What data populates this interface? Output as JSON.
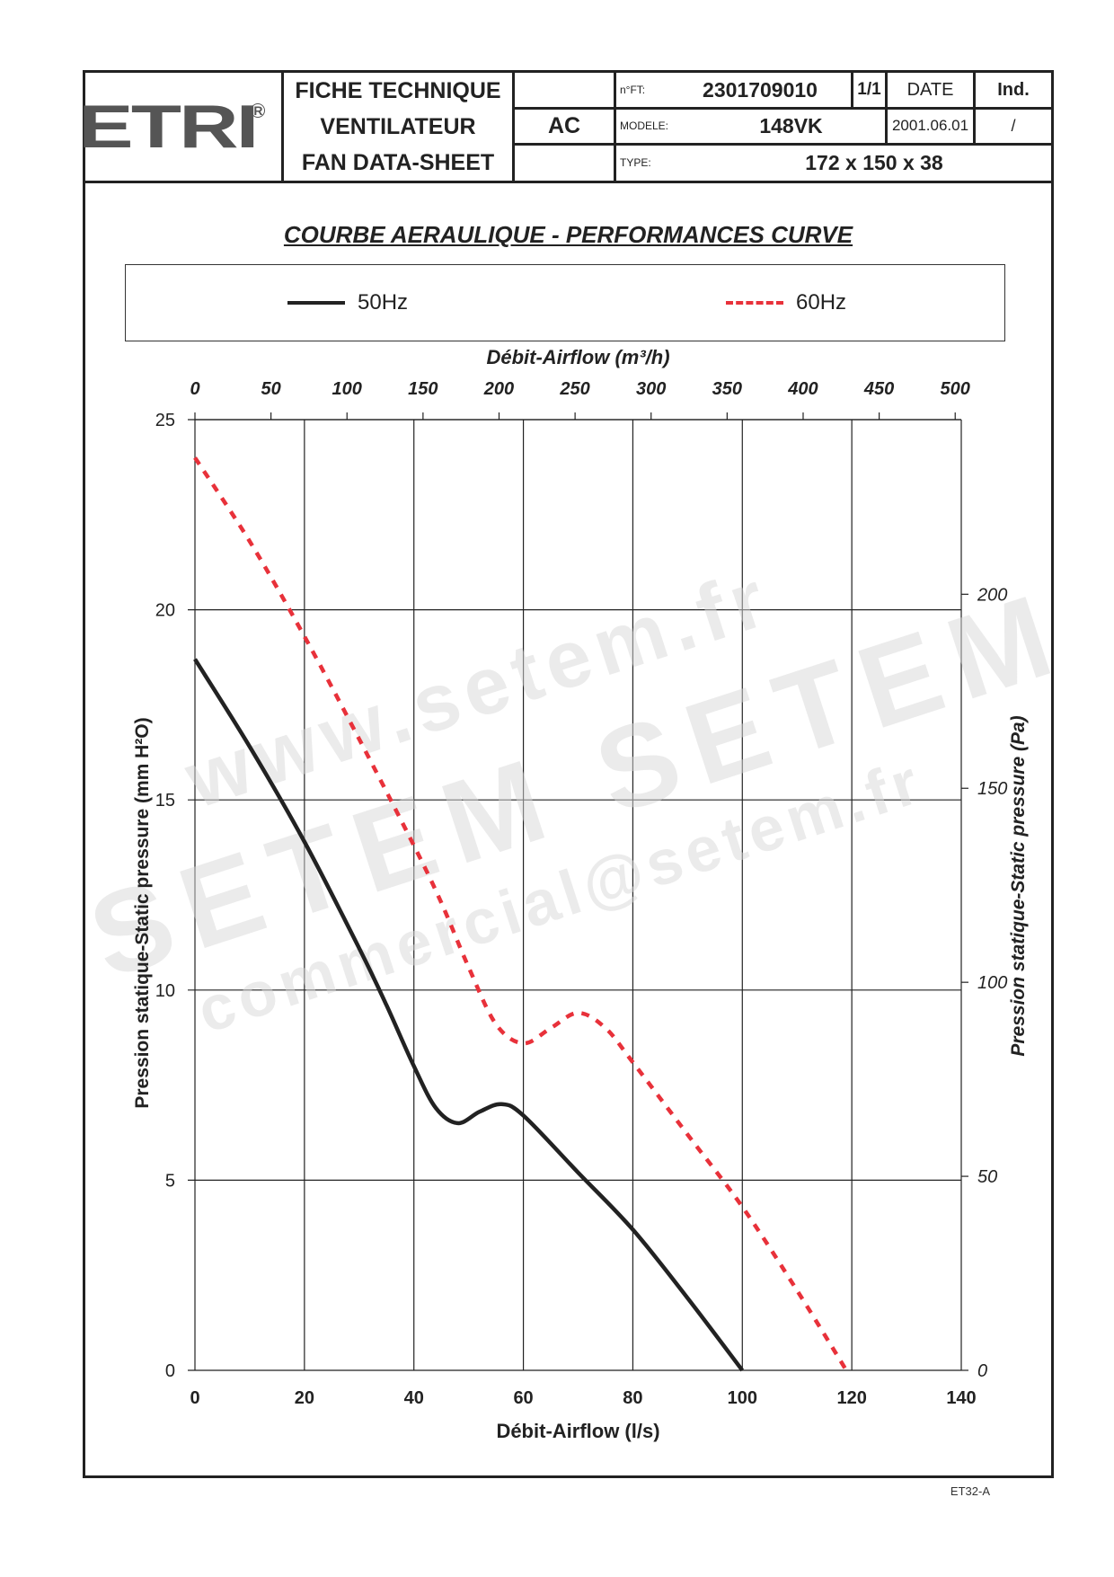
{
  "header": {
    "logo": "ETRI",
    "logo_mark": "R",
    "title_lines": [
      "FICHE TECHNIQUE",
      "VENTILATEUR",
      "FAN DATA-SHEET"
    ],
    "current_type": "AC",
    "nft_label": "n°FT:",
    "nft_value": "2301709010",
    "page": "1/1",
    "date_label": "DATE",
    "ind_label": "Ind.",
    "model_label": "MODELE:",
    "model_value": "148VK",
    "date_value": "2001.06.01",
    "ind_value": "/",
    "type_label": "TYPE:",
    "type_value": "172 x 150 x 38"
  },
  "footer": {
    "code": "ET32-A"
  },
  "watermark": [
    "www.setem.fr",
    "SETEM  SETEM",
    "commercial@setem.fr"
  ],
  "colors": {
    "line_50hz": "#222222",
    "line_60hz": "#e8313a",
    "grid": "#222222"
  },
  "chart_data": {
    "type": "line",
    "title": "COURBE AERAULIQUE - PERFORMANCES CURVE",
    "xlabel": "Débit-Airflow (l/s)",
    "x2label": "Débit-Airflow (m³/h)",
    "ylabel": "Pression statique-Static pressure (mm H²O)",
    "y2label": "Pression statique-Static pressure (Pa)",
    "xlim": [
      0,
      140
    ],
    "ylim": [
      0,
      25
    ],
    "x2lim": [
      0,
      504
    ],
    "y2lim": [
      0,
      245
    ],
    "x_ticks": [
      0,
      20,
      40,
      60,
      80,
      100,
      120,
      140
    ],
    "y_ticks": [
      0,
      5,
      10,
      15,
      20,
      25
    ],
    "x2_ticks": [
      0,
      50,
      100,
      150,
      200,
      250,
      300,
      350,
      400,
      450,
      500
    ],
    "y2_ticks": [
      0,
      50,
      100,
      150,
      200
    ],
    "grid": true,
    "legend_position": "top",
    "series": [
      {
        "name": "50Hz",
        "style": "solid",
        "x": [
          0,
          10,
          20,
          30,
          35,
          40,
          44,
          48,
          52,
          56,
          60,
          70,
          80,
          90,
          100
        ],
        "y": [
          18.7,
          16.4,
          13.9,
          11.1,
          9.6,
          8.0,
          6.9,
          6.5,
          6.8,
          7.0,
          6.7,
          5.2,
          3.7,
          1.9,
          0.0
        ]
      },
      {
        "name": "60Hz",
        "style": "dashed",
        "x": [
          0,
          10,
          20,
          30,
          40,
          45,
          50,
          55,
          60,
          65,
          70,
          75,
          80,
          90,
          100,
          110,
          119
        ],
        "y": [
          24.0,
          21.8,
          19.3,
          16.6,
          13.8,
          12.3,
          10.6,
          9.1,
          8.6,
          9.0,
          9.4,
          9.0,
          8.1,
          6.2,
          4.3,
          2.1,
          0.0
        ]
      }
    ]
  }
}
